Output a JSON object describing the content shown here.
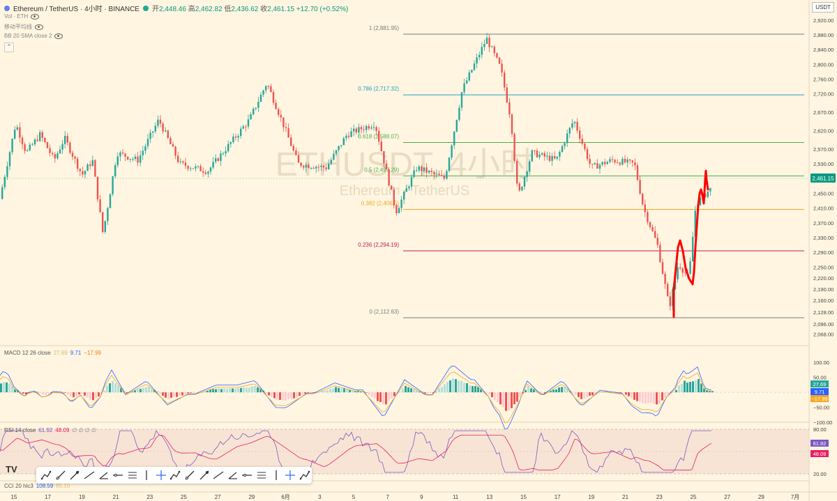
{
  "header": {
    "symbol": "Ethereum / TetherUS · 4小时 · BINANCE",
    "ohlc": [
      {
        "k": "开",
        "v": "2,448.46"
      },
      {
        "k": "高",
        "v": "2,462.82"
      },
      {
        "k": "低",
        "v": "2,436.62"
      },
      {
        "k": "收",
        "v": "2,461.15 +12.70 (+0.52%)"
      }
    ]
  },
  "indicators": {
    "vol": "Vol · ETH",
    "ma": "移动平均线",
    "bb": "BB 20 SMA close 2"
  },
  "currency": "USDT",
  "watermark": {
    "line1": "ETHUSDT, 4小时",
    "line2": "Ethereum / TetherUS"
  },
  "fib": [
    {
      "label": "1 (2,881.95)",
      "price": 2881.95,
      "color": "#787b86"
    },
    {
      "label": "0.786 (2,717.32)",
      "price": 2717.32,
      "color": "#22a3c4"
    },
    {
      "label": "0.618 (2,588.07)",
      "price": 2588.07,
      "color": "#4caf50"
    },
    {
      "label": "0.5 (2,497.29)",
      "price": 2497.29,
      "color": "#4caf50"
    },
    {
      "label": "0.382 (2,406.5)",
      "price": 2406.5,
      "color": "#f5a623"
    },
    {
      "label": "0.236 (2,294.19)",
      "price": 2294.19,
      "color": "#c2185b"
    },
    {
      "label": "0 (2,112.63)",
      "price": 2112.63,
      "color": "#787b86"
    }
  ],
  "price_axis": {
    "ticks": [
      "2,920.00",
      "2,880.00",
      "2,840.00",
      "2,800.00",
      "2,760.00",
      "2,720.00",
      "2,670.00",
      "2,620.00",
      "2,570.00",
      "2,530.00",
      "2,490.00",
      "2,450.00",
      "2,410.00",
      "2,370.00",
      "2,330.00",
      "2,290.00",
      "2,250.00",
      "2,220.00",
      "2,190.00",
      "2,160.00",
      "2,128.00",
      "2,096.00",
      "2,068.00"
    ],
    "last_price": "2,461.15"
  },
  "macd": {
    "label": "MACD 12 26 close",
    "v1": "27.69",
    "v2": "9.71",
    "v3": "−17.99",
    "ticks": [
      "100.00",
      "50.00",
      "−50.00",
      "−100.00"
    ]
  },
  "rsi": {
    "label": "RSI 14 close",
    "v1": "61.92",
    "v2": "48.09",
    "extra": "∅ ∅ ∅ ∅",
    "ticks": [
      "80.00",
      "20.00"
    ],
    "badge1": "61.92",
    "badge2": "48.09"
  },
  "cci": {
    "label": "CCI 20 hlc3",
    "v1": "108.59",
    "v2": "85.10"
  },
  "time_axis": [
    "15",
    "17",
    "19",
    "21",
    "23",
    "25",
    "27",
    "29",
    "6月",
    "3",
    "5",
    "7",
    "9",
    "11",
    "13",
    "15",
    "17",
    "19",
    "21",
    "23",
    "25",
    "27",
    "29",
    "7月"
  ],
  "macd_badges": [
    "27.69",
    "9.71",
    "−17.99"
  ],
  "tools": [
    "trend-line-icon",
    "ray-icon",
    "info-line-icon",
    "extended-line-icon",
    "trend-angle-icon",
    "horizontal-line-icon",
    "horizontal-ray-icon",
    "vertical-line-icon",
    "cross-line-icon",
    "parallel-channel-icon",
    "regression-trend-icon",
    "flat-top-icon",
    "disjoint-channel-icon",
    "pitchfork-icon",
    "schiff-icon",
    "fib-retracement-icon",
    "trend-fib-icon",
    "fib-fan-icon",
    "path-icon"
  ],
  "colors": {
    "up": "#26a69a",
    "down": "#ef5350",
    "bg": "#fff5e0",
    "annotation": "#ff0000"
  }
}
